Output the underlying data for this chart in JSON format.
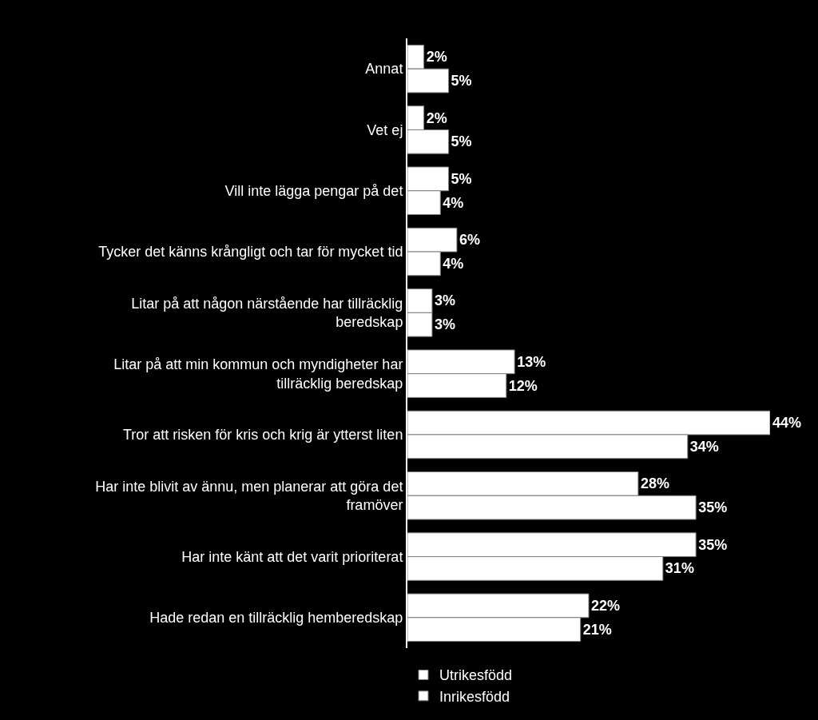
{
  "chart_data": {
    "type": "bar",
    "orientation": "horizontal",
    "categories": [
      "Annat",
      "Vet ej",
      "Vill inte lägga pengar på det",
      "Tycker det känns krångligt och tar för mycket tid",
      "Litar på att någon närstående har tillräcklig beredskap",
      "Litar på att min kommun och myndigheter har tillräcklig beredskap",
      "Tror att risken för kris och krig är ytterst liten",
      "Har inte blivit av ännu, men planerar att göra det framöver",
      "Har inte känt att det varit prioriterat",
      "Hade redan en tillräcklig hemberedskap"
    ],
    "series": [
      {
        "name": "Utrikesfödd",
        "color": "#ffffff",
        "values": [
          2,
          2,
          5,
          6,
          3,
          13,
          44,
          28,
          35,
          22
        ],
        "value_labels": [
          "2%",
          "2%",
          "5%",
          "6%",
          "3%",
          "13%",
          "44%",
          "28%",
          "35%",
          "22%"
        ]
      },
      {
        "name": "Inrikesfödd",
        "color": "#ffffff",
        "values": [
          5,
          5,
          4,
          4,
          3,
          12,
          34,
          35,
          31,
          21
        ],
        "value_labels": [
          "5%",
          "5%",
          "4%",
          "4%",
          "3%",
          "12%",
          "34%",
          "35%",
          "31%",
          "21%"
        ]
      }
    ],
    "legend": "bottom",
    "tick_labels": "y"
  }
}
